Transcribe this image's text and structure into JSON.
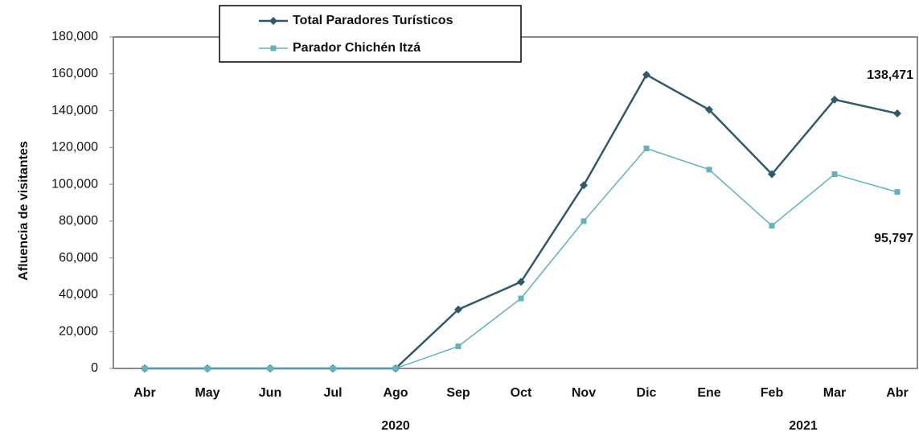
{
  "chart_data": {
    "type": "line",
    "y_label": "Afluencia de visitantes",
    "categories": [
      "Abr",
      "May",
      "Jun",
      "Jul",
      "Ago",
      "Sep",
      "Oct",
      "Nov",
      "Dic",
      "Ene",
      "Feb",
      "Mar",
      "Abr"
    ],
    "year_labels": [
      "2020",
      "2021"
    ],
    "series": [
      {
        "name": "Total Paradores Turísticos",
        "color": "#2e5b6b",
        "marker": "diamond",
        "values": [
          0,
          0,
          0,
          0,
          0,
          32000,
          47000,
          99500,
          159500,
          140500,
          105500,
          146000,
          138471
        ],
        "value_labels": [
          null,
          null,
          null,
          null,
          null,
          null,
          null,
          null,
          null,
          null,
          null,
          null,
          "138,471"
        ]
      },
      {
        "name": "Parador Chichén Itzá",
        "color": "#5fb4bd",
        "marker": "square",
        "values": [
          0,
          0,
          0,
          0,
          0,
          12000,
          38000,
          80000,
          119500,
          108000,
          77500,
          105500,
          95797
        ],
        "value_labels": [
          null,
          null,
          null,
          null,
          null,
          null,
          null,
          null,
          null,
          null,
          null,
          null,
          "95,797"
        ]
      }
    ],
    "ylim": [
      0,
      180000
    ],
    "yticks": [
      0,
      {
        "value": 20000,
        "label": "20,000"
      },
      {
        "value": 40000,
        "label": "40,000"
      },
      {
        "value": 60000,
        "label": "60,000"
      },
      {
        "value": 80000,
        "label": "80,000"
      },
      {
        "value": 100000,
        "label": "100,000"
      },
      {
        "value": 120000,
        "label": "120,000"
      },
      {
        "value": 140000,
        "label": "140,000"
      },
      {
        "value": 160000,
        "label": "160,000"
      },
      {
        "value": 180000,
        "label": "180,000"
      }
    ],
    "grid": false
  }
}
